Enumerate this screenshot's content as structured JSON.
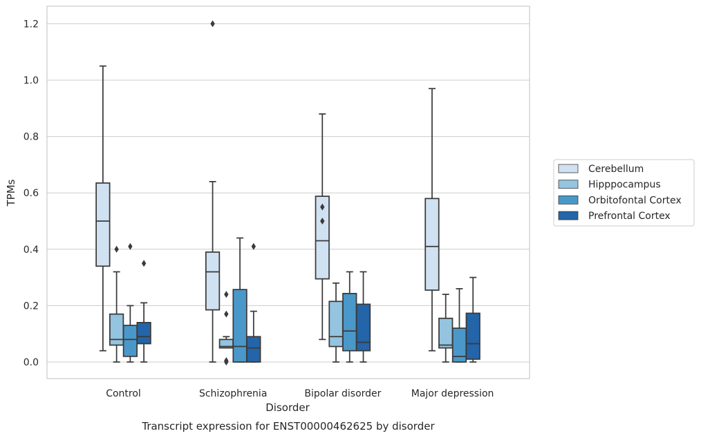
{
  "chart_data": {
    "type": "boxplot",
    "xlabel": "Disorder",
    "ylabel": "TPMs",
    "caption": "Transcript expression for ENST00000462625 by disorder",
    "ylim": [
      -0.058,
      1.26
    ],
    "yticks": [
      "0.0",
      "0.2",
      "0.4",
      "0.6",
      "0.8",
      "1.0",
      "1.2"
    ],
    "grid": "horizontal",
    "legend_position": "right",
    "categories": [
      "Control",
      "Schizophrenia",
      "Bipolar disorder",
      "Major depression"
    ],
    "series": [
      {
        "name": "Cerebellum",
        "color": "#d0e1f2",
        "boxes": [
          {
            "whisker_low": 0.04,
            "q1": 0.34,
            "median": 0.5,
            "q3": 0.635,
            "whisker_high": 1.05,
            "outliers": []
          },
          {
            "whisker_low": 0.0,
            "q1": 0.185,
            "median": 0.32,
            "q3": 0.39,
            "whisker_high": 0.64,
            "outliers": [
              1.2
            ]
          },
          {
            "whisker_low": 0.08,
            "q1": 0.295,
            "median": 0.43,
            "q3": 0.588,
            "whisker_high": 0.88,
            "outliers": [
              0.55,
              0.5
            ]
          },
          {
            "whisker_low": 0.04,
            "q1": 0.255,
            "median": 0.41,
            "q3": 0.58,
            "whisker_high": 0.97,
            "outliers": []
          }
        ]
      },
      {
        "name": "Hipppocampus",
        "color": "#94c4df",
        "boxes": [
          {
            "whisker_low": 0.0,
            "q1": 0.06,
            "median": 0.08,
            "q3": 0.17,
            "whisker_high": 0.32,
            "outliers": [
              0.4
            ]
          },
          {
            "whisker_low": 0.05,
            "q1": 0.05,
            "median": 0.055,
            "q3": 0.08,
            "whisker_high": 0.09,
            "outliers": [
              0.24,
              0.17,
              0.005,
              0.0
            ]
          },
          {
            "whisker_low": 0.0,
            "q1": 0.055,
            "median": 0.09,
            "q3": 0.215,
            "whisker_high": 0.28,
            "outliers": []
          },
          {
            "whisker_low": 0.0,
            "q1": 0.05,
            "median": 0.06,
            "q3": 0.155,
            "whisker_high": 0.24,
            "outliers": []
          }
        ]
      },
      {
        "name": "Orbitofontal Cortex",
        "color": "#4a98c9",
        "boxes": [
          {
            "whisker_low": 0.0,
            "q1": 0.02,
            "median": 0.08,
            "q3": 0.13,
            "whisker_high": 0.2,
            "outliers": [
              0.41
            ]
          },
          {
            "whisker_low": 0.0,
            "q1": 0.0,
            "median": 0.055,
            "q3": 0.257,
            "whisker_high": 0.44,
            "outliers": []
          },
          {
            "whisker_low": 0.0,
            "q1": 0.04,
            "median": 0.11,
            "q3": 0.243,
            "whisker_high": 0.32,
            "outliers": []
          },
          {
            "whisker_low": 0.0,
            "q1": 0.0,
            "median": 0.02,
            "q3": 0.12,
            "whisker_high": 0.26,
            "outliers": []
          }
        ]
      },
      {
        "name": "Prefrontal Cortex",
        "color": "#2464a8",
        "boxes": [
          {
            "whisker_low": 0.0,
            "q1": 0.065,
            "median": 0.09,
            "q3": 0.14,
            "whisker_high": 0.21,
            "outliers": [
              0.35
            ]
          },
          {
            "whisker_low": 0.0,
            "q1": 0.0,
            "median": 0.05,
            "q3": 0.09,
            "whisker_high": 0.18,
            "outliers": [
              0.41
            ]
          },
          {
            "whisker_low": 0.0,
            "q1": 0.04,
            "median": 0.07,
            "q3": 0.205,
            "whisker_high": 0.32,
            "outliers": []
          },
          {
            "whisker_low": 0.0,
            "q1": 0.01,
            "median": 0.065,
            "q3": 0.173,
            "whisker_high": 0.3,
            "outliers": []
          }
        ]
      }
    ]
  }
}
